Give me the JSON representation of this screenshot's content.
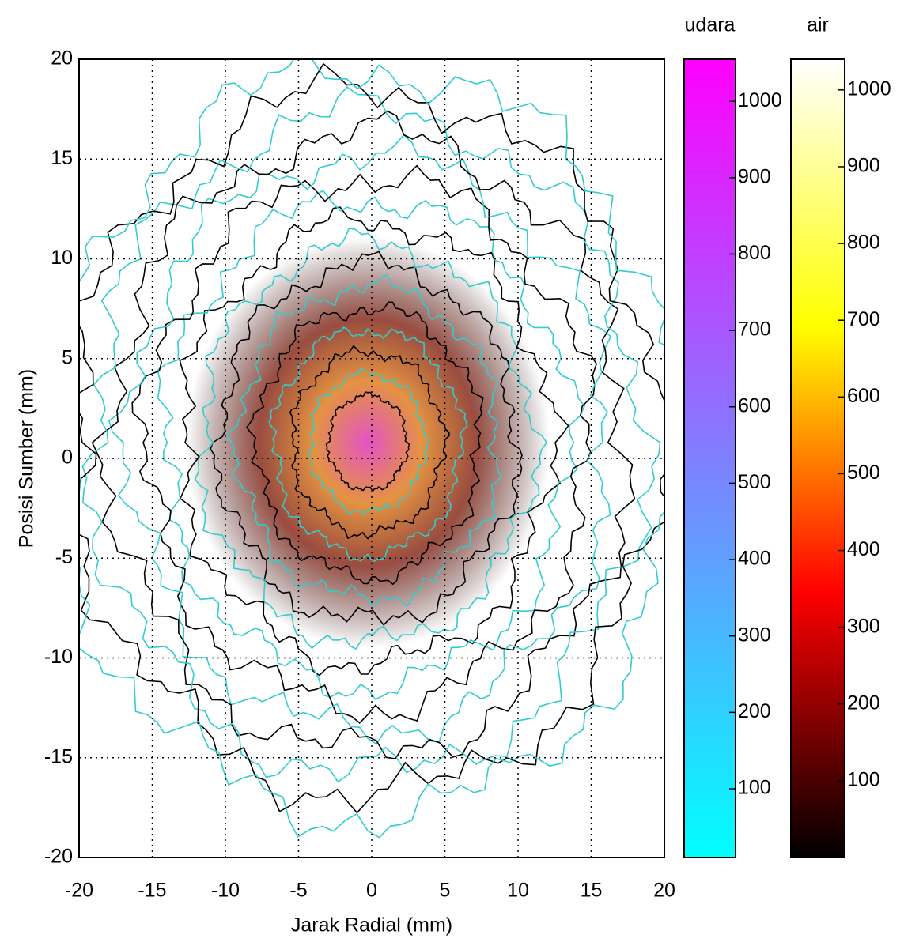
{
  "chart_data": {
    "type": "contour",
    "xlabel": "Jarak Radial (mm)",
    "ylabel": "Posisi Sumber (mm)",
    "xlim": [
      -20,
      20
    ],
    "ylim": [
      -20,
      20
    ],
    "xticks": [
      -20,
      -15,
      -10,
      -5,
      0,
      5,
      10,
      15,
      20
    ],
    "yticks": [
      -20,
      -15,
      -10,
      -5,
      0,
      5,
      10,
      15,
      20
    ],
    "grid": true,
    "colorbars": [
      {
        "name": "udara",
        "lim": [
          10,
          1055
        ],
        "ticks": [
          100,
          200,
          300,
          400,
          500,
          600,
          700,
          800,
          900,
          1000
        ],
        "colors": [
          "#00ffff",
          "#ff00ff"
        ],
        "contour_color": "#33cccc"
      },
      {
        "name": "air",
        "lim": [
          0,
          1040
        ],
        "ticks": [
          100,
          200,
          300,
          400,
          500,
          600,
          700,
          800,
          900,
          1000
        ],
        "colors": [
          "#000000",
          "#ff0000",
          "#ffff00",
          "#ffffff"
        ],
        "contour_color": "#000000"
      }
    ]
  }
}
